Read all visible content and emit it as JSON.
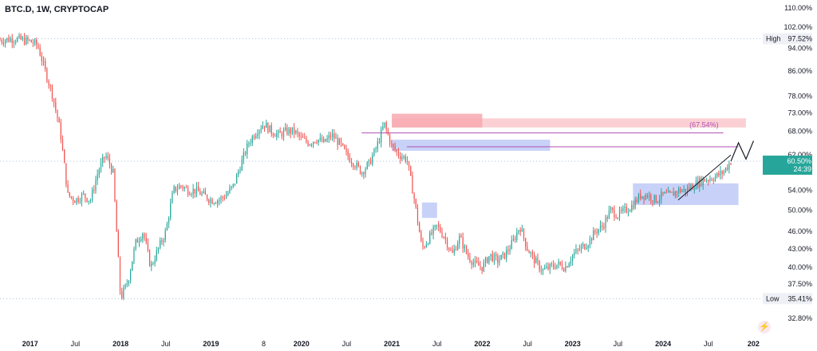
{
  "header": {
    "symbol_label": "BTC.D, 1W, CRYPTOCAP"
  },
  "colors": {
    "up": "#26a69a",
    "down": "#ef5350",
    "grid_dotted": "#a8c8d8",
    "axis_text": "#131722",
    "last_price_badge": "#26a69a",
    "supply_zone": "#f7a9b0",
    "demand_zone": "#b5c3f5",
    "level_line": "#b14fb0"
  },
  "chart_data": {
    "type": "candlestick",
    "title": "BTC.D, 1W, CRYPTOCAP",
    "x_tick_labels": [
      "2017",
      "Jul",
      "2018",
      "Jul",
      "2019",
      "8",
      "2020",
      "Jul",
      "2021",
      "Jul",
      "2022",
      "Jul",
      "2023",
      "Jul",
      "2024",
      "Jul",
      "202"
    ],
    "y_tick_labels": [
      "110.00%",
      "102.00%",
      "94.00%",
      "86.00%",
      "78.00%",
      "73.00%",
      "68.00%",
      "62.00%",
      "54.00%",
      "50.00%",
      "46.00%",
      "43.00%",
      "40.00%",
      "37.50%",
      "32.80%"
    ],
    "y_scale": "log",
    "ylim": [
      31.5,
      112
    ],
    "xlim": [
      "2016-09",
      "2024-12"
    ],
    "grid": false,
    "price_path": [
      [
        "2016-09",
        97.0
      ],
      [
        "2016-11",
        97.5
      ],
      [
        "2017-01",
        96.5
      ],
      [
        "2017-02",
        95.0
      ],
      [
        "2017-03",
        86.0
      ],
      [
        "2017-04",
        78.0
      ],
      [
        "2017-05",
        68.0
      ],
      [
        "2017-06",
        53.0
      ],
      [
        "2017-07",
        52.0
      ],
      [
        "2017-08",
        53.0
      ],
      [
        "2017-09",
        52.0
      ],
      [
        "2017-10",
        58.0
      ],
      [
        "2017-11",
        62.0
      ],
      [
        "2017-12",
        58.0
      ],
      [
        "2018-01",
        35.4
      ],
      [
        "2018-02",
        38.0
      ],
      [
        "2018-03",
        44.0
      ],
      [
        "2018-04",
        46.0
      ],
      [
        "2018-05",
        40.0
      ],
      [
        "2018-06",
        43.0
      ],
      [
        "2018-07",
        46.0
      ],
      [
        "2018-08",
        54.0
      ],
      [
        "2018-09",
        55.0
      ],
      [
        "2018-10",
        54.0
      ],
      [
        "2018-11",
        54.0
      ],
      [
        "2018-12",
        53.0
      ],
      [
        "2019-01",
        52.0
      ],
      [
        "2019-02",
        52.0
      ],
      [
        "2019-03",
        53.0
      ],
      [
        "2019-04",
        55.0
      ],
      [
        "2019-05",
        60.0
      ],
      [
        "2019-06",
        65.0
      ],
      [
        "2019-07",
        68.0
      ],
      [
        "2019-08",
        70.0
      ],
      [
        "2019-09",
        68.0
      ],
      [
        "2019-10",
        67.0
      ],
      [
        "2019-11",
        68.0
      ],
      [
        "2019-12",
        68.0
      ],
      [
        "2020-01",
        66.0
      ],
      [
        "2020-02",
        65.0
      ],
      [
        "2020-03",
        66.0
      ],
      [
        "2020-04",
        65.0
      ],
      [
        "2020-05",
        67.0
      ],
      [
        "2020-06",
        65.0
      ],
      [
        "2020-07",
        62.0
      ],
      [
        "2020-08",
        60.0
      ],
      [
        "2020-09",
        58.0
      ],
      [
        "2020-10",
        60.0
      ],
      [
        "2020-11",
        64.0
      ],
      [
        "2020-12",
        70.0
      ],
      [
        "2021-01",
        64.0
      ],
      [
        "2021-02",
        62.0
      ],
      [
        "2021-03",
        61.0
      ],
      [
        "2021-04",
        52.0
      ],
      [
        "2021-05",
        43.0
      ],
      [
        "2021-06",
        45.0
      ],
      [
        "2021-07",
        47.0
      ],
      [
        "2021-08",
        45.0
      ],
      [
        "2021-09",
        42.0
      ],
      [
        "2021-10",
        45.0
      ],
      [
        "2021-11",
        42.0
      ],
      [
        "2021-12",
        40.5
      ],
      [
        "2022-01",
        40.0
      ],
      [
        "2022-02",
        42.0
      ],
      [
        "2022-03",
        41.0
      ],
      [
        "2022-04",
        42.0
      ],
      [
        "2022-05",
        44.0
      ],
      [
        "2022-06",
        47.0
      ],
      [
        "2022-07",
        43.0
      ],
      [
        "2022-08",
        41.0
      ],
      [
        "2022-09",
        39.5
      ],
      [
        "2022-10",
        40.0
      ],
      [
        "2022-11",
        40.5
      ],
      [
        "2022-12",
        40.0
      ],
      [
        "2023-01",
        42.0
      ],
      [
        "2023-02",
        43.0
      ],
      [
        "2023-03",
        44.0
      ],
      [
        "2023-04",
        46.0
      ],
      [
        "2023-05",
        47.0
      ],
      [
        "2023-06",
        50.0
      ],
      [
        "2023-07",
        49.0
      ],
      [
        "2023-08",
        50.0
      ],
      [
        "2023-09",
        51.0
      ],
      [
        "2023-10",
        53.0
      ],
      [
        "2023-11",
        53.0
      ],
      [
        "2023-12",
        52.0
      ],
      [
        "2024-01",
        53.0
      ],
      [
        "2024-02",
        53.0
      ],
      [
        "2024-03",
        54.0
      ],
      [
        "2024-04",
        54.0
      ],
      [
        "2024-05",
        55.0
      ],
      [
        "2024-06",
        56.0
      ],
      [
        "2024-07",
        56.5
      ],
      [
        "2024-08",
        57.0
      ],
      [
        "2024-09",
        58.0
      ],
      [
        "2024-10",
        60.5
      ]
    ],
    "high": {
      "label": "High",
      "value": "97.52%"
    },
    "low": {
      "label": "Low",
      "value": "35.41%"
    },
    "last_price": {
      "value": "60.50%",
      "countdown": "24:39"
    },
    "annotations": {
      "level_label": "(67.54%)",
      "supply_zone": {
        "from": "2021-01",
        "to": "2024-12",
        "top": 71.5,
        "bottom": 69.0
      },
      "supply_zone_dark": {
        "from": "2021-01",
        "to": "2022-01",
        "top": 72.8,
        "bottom": 69.0
      },
      "level_line": {
        "from": "2020-09",
        "to": "2024-09",
        "y": 67.54
      },
      "demand_zone": {
        "from": "2021-01",
        "to": "2022-10",
        "top": 65.8,
        "bottom": 63.0
      },
      "demand_line": {
        "from": "2021-03",
        "to": "2024-11",
        "y": 64.0
      },
      "small_demand_box": {
        "from": "2021-05",
        "to": "2021-07",
        "top": 51.5,
        "bottom": 48.5
      },
      "consolidation_box": {
        "from": "2023-09",
        "to": "2024-11",
        "top": 55.5,
        "bottom": 51.0
      },
      "rising_line": {
        "from": [
          "2024-03",
          52.0
        ],
        "to": [
          "2024-10",
          62.0
        ]
      },
      "projection": [
        [
          "2024-10",
          60.5
        ],
        [
          "2024-11",
          65.0
        ],
        [
          "2024-12",
          61.0
        ],
        [
          "2025-01",
          65.5
        ]
      ]
    }
  }
}
